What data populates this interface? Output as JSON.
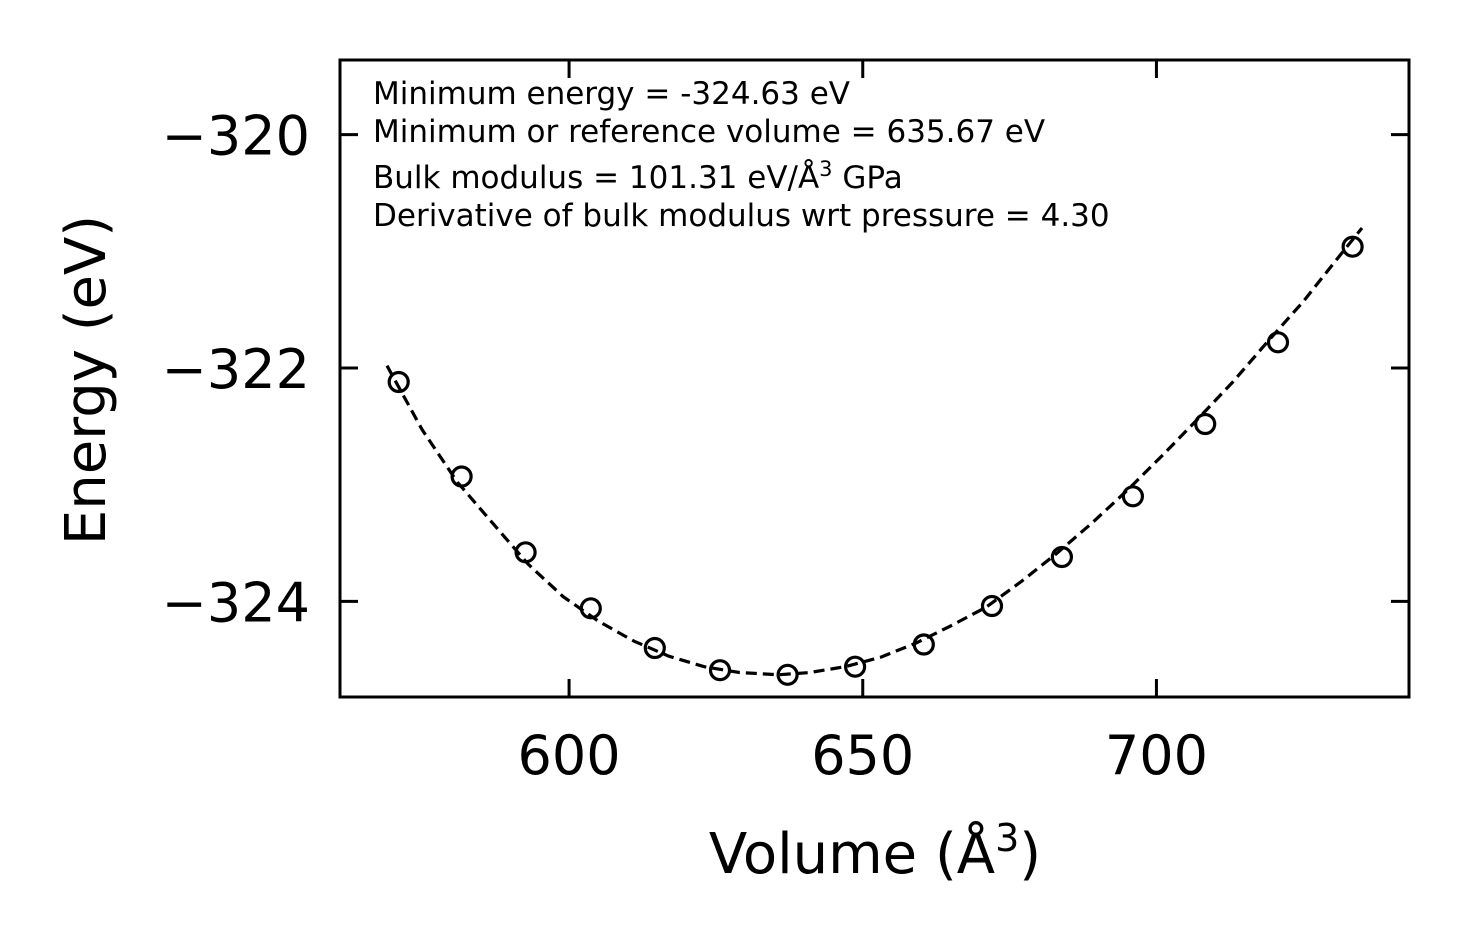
{
  "chart_data": {
    "type": "scatter",
    "title": "",
    "xlabel": "Volume (Å",
    "xlabel_sup": "3",
    "xlabel_suffix": ")",
    "ylabel": "Energy (eV)",
    "xlim": [
      561,
      743
    ],
    "ylim": [
      -324.82,
      -319.36
    ],
    "xticks": [
      600,
      650,
      700
    ],
    "xtick_labels": [
      "600",
      "650",
      "700"
    ],
    "yticks": [
      -320,
      -322,
      -324
    ],
    "ytick_labels": [
      "−320",
      "−322",
      "−324"
    ],
    "series": [
      {
        "name": "data",
        "marker": "open-circle",
        "x": [
          571,
          581.7,
          592.6,
          603.7,
          614.6,
          625.7,
          637.2,
          648.7,
          660.4,
          672.0,
          683.9,
          696.0,
          708.3,
          720.7,
          733.4
        ],
        "y": [
          -322.12,
          -322.93,
          -323.58,
          -324.06,
          -324.4,
          -324.59,
          -324.63,
          -324.56,
          -324.37,
          -324.04,
          -323.62,
          -323.1,
          -322.48,
          -321.78,
          -320.96
        ]
      },
      {
        "name": "fit",
        "line_style": "dashed",
        "x": [
          569,
          575,
          581,
          587,
          593,
          599,
          605,
          611,
          617,
          623,
          629,
          635.67,
          641,
          647,
          653,
          659,
          665,
          671,
          677,
          683,
          689,
          695,
          701,
          707,
          713,
          719,
          725,
          731,
          735
        ],
        "y": [
          -321.98,
          -322.53,
          -322.98,
          -323.33,
          -323.68,
          -323.96,
          -324.17,
          -324.34,
          -324.47,
          -324.56,
          -324.61,
          -324.63,
          -324.61,
          -324.56,
          -324.48,
          -324.36,
          -324.21,
          -324.05,
          -323.83,
          -323.59,
          -323.33,
          -323.05,
          -322.75,
          -322.44,
          -322.12,
          -321.77,
          -321.43,
          -321.05,
          -320.8
        ]
      }
    ],
    "annotations": [
      "Minimum energy = -324.63 eV",
      "Minimum or reference volume = 635.67 eV",
      "Bulk modulus = 101.31 eV/Å",
      "Derivative of bulk modulus wrt pressure = 4.30"
    ],
    "annotation_bulk_sup": "3",
    "annotation_bulk_suffix": " GPa",
    "legend": "none",
    "grid": false
  }
}
